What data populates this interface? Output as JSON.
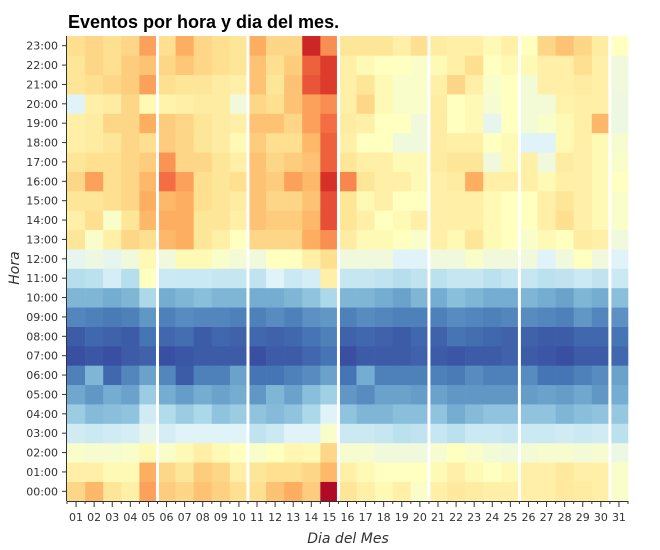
{
  "chart_data": {
    "type": "heatmap",
    "title": "Eventos por hora y dia del mes.",
    "xlabel": "Dia del Mes",
    "ylabel": "Hora",
    "x": [
      "01",
      "02",
      "03",
      "04",
      "05",
      "06",
      "07",
      "08",
      "09",
      "10",
      "11",
      "12",
      "13",
      "14",
      "15",
      "16",
      "17",
      "18",
      "19",
      "20",
      "21",
      "22",
      "23",
      "24",
      "25",
      "26",
      "27",
      "28",
      "29",
      "30",
      "31"
    ],
    "y": [
      "00:00",
      "01:00",
      "02:00",
      "03:00",
      "04:00",
      "05:00",
      "06:00",
      "07:00",
      "08:00",
      "09:00",
      "10:00",
      "11:00",
      "12:00",
      "13:00",
      "14:00",
      "15:00",
      "16:00",
      "17:00",
      "18:00",
      "19:00",
      "20:00",
      "21:00",
      "22:00",
      "23:00"
    ],
    "highlighted_days": [
      "05",
      "10",
      "15",
      "20",
      "25",
      "30"
    ],
    "colormap": "RdYlBu_r",
    "grid": false,
    "values": [
      [
        0.62,
        0.68,
        0.58,
        0.55,
        0.72,
        0.64,
        0.62,
        0.66,
        0.63,
        0.6,
        0.6,
        0.66,
        0.7,
        0.64,
        0.98,
        0.58,
        0.55,
        0.52,
        0.55,
        0.48,
        0.55,
        0.57,
        0.56,
        0.55,
        0.55,
        0.55,
        0.55,
        0.57,
        0.56,
        0.55,
        0.48
      ],
      [
        0.55,
        0.55,
        0.52,
        0.52,
        0.7,
        0.62,
        0.58,
        0.64,
        0.62,
        0.55,
        0.58,
        0.6,
        0.6,
        0.62,
        0.68,
        0.55,
        0.52,
        0.5,
        0.5,
        0.5,
        0.52,
        0.55,
        0.52,
        0.5,
        0.52,
        0.55,
        0.55,
        0.57,
        0.55,
        0.55,
        0.48
      ],
      [
        0.48,
        0.47,
        0.47,
        0.48,
        0.52,
        0.48,
        0.52,
        0.55,
        0.52,
        0.5,
        0.48,
        0.5,
        0.53,
        0.52,
        0.62,
        0.47,
        0.47,
        0.45,
        0.45,
        0.45,
        0.47,
        0.5,
        0.48,
        0.46,
        0.45,
        0.46,
        0.47,
        0.47,
        0.46,
        0.47,
        0.44
      ],
      [
        0.37,
        0.36,
        0.37,
        0.38,
        0.42,
        0.38,
        0.4,
        0.4,
        0.4,
        0.4,
        0.34,
        0.36,
        0.4,
        0.4,
        0.48,
        0.36,
        0.36,
        0.35,
        0.33,
        0.34,
        0.35,
        0.33,
        0.36,
        0.36,
        0.35,
        0.36,
        0.36,
        0.37,
        0.36,
        0.37,
        0.33
      ],
      [
        0.27,
        0.23,
        0.24,
        0.25,
        0.37,
        0.31,
        0.27,
        0.3,
        0.25,
        0.27,
        0.25,
        0.23,
        0.25,
        0.3,
        0.4,
        0.25,
        0.22,
        0.22,
        0.24,
        0.24,
        0.25,
        0.2,
        0.23,
        0.25,
        0.25,
        0.25,
        0.25,
        0.22,
        0.24,
        0.25,
        0.26
      ],
      [
        0.19,
        0.16,
        0.2,
        0.18,
        0.27,
        0.2,
        0.17,
        0.2,
        0.18,
        0.2,
        0.16,
        0.22,
        0.18,
        0.24,
        0.28,
        0.16,
        0.14,
        0.18,
        0.18,
        0.17,
        0.18,
        0.16,
        0.16,
        0.16,
        0.16,
        0.17,
        0.18,
        0.17,
        0.19,
        0.16,
        0.2
      ],
      [
        0.12,
        0.22,
        0.08,
        0.13,
        0.18,
        0.13,
        0.06,
        0.12,
        0.12,
        0.18,
        0.1,
        0.1,
        0.12,
        0.14,
        0.18,
        0.1,
        0.2,
        0.12,
        0.12,
        0.12,
        0.12,
        0.11,
        0.14,
        0.12,
        0.12,
        0.14,
        0.1,
        0.1,
        0.12,
        0.14,
        0.18
      ],
      [
        0.04,
        0.05,
        0.04,
        0.06,
        0.07,
        0.04,
        0.05,
        0.06,
        0.06,
        0.06,
        0.04,
        0.06,
        0.06,
        0.08,
        0.1,
        0.04,
        0.06,
        0.06,
        0.06,
        0.07,
        0.06,
        0.05,
        0.06,
        0.06,
        0.07,
        0.06,
        0.05,
        0.04,
        0.06,
        0.06,
        0.08
      ],
      [
        0.06,
        0.08,
        0.07,
        0.06,
        0.1,
        0.08,
        0.09,
        0.06,
        0.08,
        0.07,
        0.08,
        0.07,
        0.08,
        0.1,
        0.12,
        0.07,
        0.08,
        0.07,
        0.06,
        0.08,
        0.07,
        0.1,
        0.09,
        0.08,
        0.07,
        0.07,
        0.06,
        0.06,
        0.08,
        0.08,
        0.1
      ],
      [
        0.13,
        0.12,
        0.11,
        0.12,
        0.16,
        0.12,
        0.14,
        0.13,
        0.13,
        0.12,
        0.12,
        0.14,
        0.12,
        0.15,
        0.16,
        0.12,
        0.14,
        0.13,
        0.12,
        0.12,
        0.12,
        0.14,
        0.13,
        0.12,
        0.13,
        0.14,
        0.13,
        0.12,
        0.16,
        0.13,
        0.15
      ],
      [
        0.22,
        0.22,
        0.2,
        0.22,
        0.3,
        0.2,
        0.22,
        0.24,
        0.22,
        0.22,
        0.2,
        0.2,
        0.22,
        0.25,
        0.3,
        0.22,
        0.22,
        0.2,
        0.18,
        0.22,
        0.2,
        0.24,
        0.22,
        0.2,
        0.2,
        0.22,
        0.2,
        0.18,
        0.22,
        0.2,
        0.24
      ],
      [
        0.32,
        0.33,
        0.38,
        0.32,
        0.5,
        0.36,
        0.36,
        0.36,
        0.35,
        0.35,
        0.34,
        0.4,
        0.36,
        0.38,
        0.55,
        0.35,
        0.35,
        0.34,
        0.32,
        0.34,
        0.33,
        0.35,
        0.35,
        0.33,
        0.35,
        0.35,
        0.33,
        0.34,
        0.36,
        0.34,
        0.36
      ],
      [
        0.42,
        0.44,
        0.42,
        0.45,
        0.52,
        0.45,
        0.52,
        0.52,
        0.48,
        0.46,
        0.45,
        0.5,
        0.5,
        0.55,
        0.6,
        0.45,
        0.45,
        0.45,
        0.4,
        0.4,
        0.45,
        0.45,
        0.48,
        0.45,
        0.45,
        0.45,
        0.4,
        0.45,
        0.5,
        0.45,
        0.4
      ],
      [
        0.58,
        0.48,
        0.55,
        0.62,
        0.6,
        0.68,
        0.7,
        0.58,
        0.55,
        0.5,
        0.62,
        0.62,
        0.62,
        0.7,
        0.75,
        0.56,
        0.52,
        0.52,
        0.5,
        0.48,
        0.55,
        0.52,
        0.58,
        0.52,
        0.5,
        0.48,
        0.52,
        0.5,
        0.56,
        0.55,
        0.45
      ],
      [
        0.55,
        0.6,
        0.48,
        0.58,
        0.68,
        0.7,
        0.7,
        0.58,
        0.58,
        0.55,
        0.66,
        0.64,
        0.64,
        0.68,
        0.85,
        0.58,
        0.55,
        0.5,
        0.52,
        0.55,
        0.55,
        0.55,
        0.55,
        0.52,
        0.5,
        0.5,
        0.55,
        0.6,
        0.55,
        0.52,
        0.48
      ],
      [
        0.58,
        0.58,
        0.6,
        0.62,
        0.7,
        0.68,
        0.7,
        0.6,
        0.58,
        0.56,
        0.66,
        0.62,
        0.62,
        0.66,
        0.85,
        0.58,
        0.52,
        0.55,
        0.5,
        0.5,
        0.55,
        0.55,
        0.55,
        0.52,
        0.5,
        0.5,
        0.55,
        0.58,
        0.55,
        0.52,
        0.48
      ],
      [
        0.62,
        0.72,
        0.6,
        0.62,
        0.68,
        0.8,
        0.72,
        0.6,
        0.58,
        0.6,
        0.66,
        0.64,
        0.72,
        0.68,
        0.9,
        0.76,
        0.58,
        0.55,
        0.55,
        0.52,
        0.55,
        0.56,
        0.7,
        0.55,
        0.55,
        0.55,
        0.52,
        0.55,
        0.55,
        0.52,
        0.5
      ],
      [
        0.58,
        0.6,
        0.6,
        0.62,
        0.64,
        0.74,
        0.62,
        0.62,
        0.58,
        0.55,
        0.66,
        0.62,
        0.64,
        0.66,
        0.82,
        0.58,
        0.55,
        0.55,
        0.52,
        0.52,
        0.56,
        0.58,
        0.58,
        0.45,
        0.52,
        0.55,
        0.45,
        0.56,
        0.55,
        0.52,
        0.48
      ],
      [
        0.55,
        0.56,
        0.58,
        0.62,
        0.6,
        0.64,
        0.62,
        0.58,
        0.56,
        0.52,
        0.64,
        0.6,
        0.6,
        0.68,
        0.82,
        0.55,
        0.5,
        0.5,
        0.45,
        0.45,
        0.56,
        0.55,
        0.55,
        0.5,
        0.52,
        0.4,
        0.4,
        0.52,
        0.55,
        0.52,
        0.47
      ],
      [
        0.55,
        0.56,
        0.62,
        0.62,
        0.7,
        0.64,
        0.62,
        0.58,
        0.56,
        0.55,
        0.66,
        0.66,
        0.62,
        0.72,
        0.8,
        0.56,
        0.55,
        0.5,
        0.5,
        0.45,
        0.56,
        0.5,
        0.52,
        0.42,
        0.5,
        0.46,
        0.48,
        0.52,
        0.55,
        0.68,
        0.44
      ],
      [
        0.4,
        0.55,
        0.56,
        0.62,
        0.52,
        0.54,
        0.55,
        0.56,
        0.56,
        0.45,
        0.62,
        0.6,
        0.66,
        0.72,
        0.75,
        0.55,
        0.62,
        0.52,
        0.48,
        0.48,
        0.56,
        0.5,
        0.52,
        0.47,
        0.5,
        0.46,
        0.46,
        0.54,
        0.55,
        0.55,
        0.44
      ],
      [
        0.58,
        0.6,
        0.62,
        0.64,
        0.72,
        0.6,
        0.58,
        0.58,
        0.56,
        0.55,
        0.66,
        0.58,
        0.66,
        0.84,
        0.88,
        0.55,
        0.58,
        0.52,
        0.48,
        0.48,
        0.55,
        0.62,
        0.55,
        0.48,
        0.5,
        0.46,
        0.55,
        0.55,
        0.56,
        0.55,
        0.45
      ],
      [
        0.58,
        0.62,
        0.6,
        0.64,
        0.66,
        0.62,
        0.65,
        0.62,
        0.6,
        0.58,
        0.66,
        0.6,
        0.64,
        0.82,
        0.88,
        0.55,
        0.52,
        0.5,
        0.5,
        0.48,
        0.52,
        0.55,
        0.6,
        0.5,
        0.52,
        0.52,
        0.55,
        0.55,
        0.6,
        0.55,
        0.45
      ],
      [
        0.6,
        0.62,
        0.6,
        0.62,
        0.72,
        0.6,
        0.7,
        0.62,
        0.6,
        0.58,
        0.7,
        0.62,
        0.62,
        0.92,
        0.75,
        0.58,
        0.58,
        0.58,
        0.55,
        0.6,
        0.56,
        0.55,
        0.55,
        0.52,
        0.55,
        0.5,
        0.62,
        0.66,
        0.62,
        0.56,
        0.5
      ]
    ]
  }
}
